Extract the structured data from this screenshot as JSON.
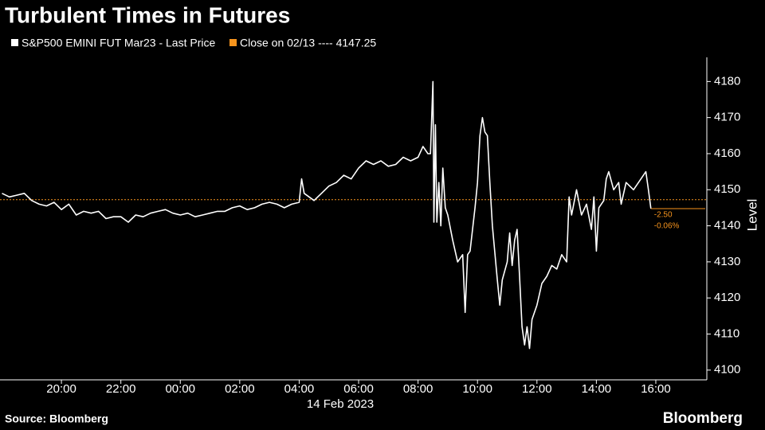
{
  "chart_data": {
    "type": "line",
    "title": "Turbulent Times in Futures",
    "x": [
      "2023-02-13T18:00",
      "2023-02-13T18:15",
      "2023-02-13T18:30",
      "2023-02-13T18:45",
      "2023-02-13T19:00",
      "2023-02-13T19:15",
      "2023-02-13T19:30",
      "2023-02-13T19:45",
      "2023-02-13T20:00",
      "2023-02-13T20:15",
      "2023-02-13T20:30",
      "2023-02-13T20:45",
      "2023-02-13T21:00",
      "2023-02-13T21:15",
      "2023-02-13T21:30",
      "2023-02-13T21:45",
      "2023-02-13T22:00",
      "2023-02-13T22:15",
      "2023-02-13T22:30",
      "2023-02-13T22:45",
      "2023-02-13T23:00",
      "2023-02-13T23:15",
      "2023-02-13T23:30",
      "2023-02-13T23:45",
      "2023-02-14T00:00",
      "2023-02-14T00:15",
      "2023-02-14T00:30",
      "2023-02-14T00:45",
      "2023-02-14T01:00",
      "2023-02-14T01:15",
      "2023-02-14T01:30",
      "2023-02-14T01:45",
      "2023-02-14T02:00",
      "2023-02-14T02:15",
      "2023-02-14T02:30",
      "2023-02-14T02:45",
      "2023-02-14T03:00",
      "2023-02-14T03:15",
      "2023-02-14T03:30",
      "2023-02-14T03:45",
      "2023-02-14T04:00",
      "2023-02-14T04:05",
      "2023-02-14T04:10",
      "2023-02-14T04:30",
      "2023-02-14T04:45",
      "2023-02-14T05:00",
      "2023-02-14T05:15",
      "2023-02-14T05:30",
      "2023-02-14T05:45",
      "2023-02-14T06:00",
      "2023-02-14T06:15",
      "2023-02-14T06:30",
      "2023-02-14T06:45",
      "2023-02-14T07:00",
      "2023-02-14T07:15",
      "2023-02-14T07:30",
      "2023-02-14T07:45",
      "2023-02-14T08:00",
      "2023-02-14T08:10",
      "2023-02-14T08:20",
      "2023-02-14T08:25",
      "2023-02-14T08:30",
      "2023-02-14T08:32",
      "2023-02-14T08:35",
      "2023-02-14T08:38",
      "2023-02-14T08:42",
      "2023-02-14T08:46",
      "2023-02-14T08:50",
      "2023-02-14T08:55",
      "2023-02-14T09:00",
      "2023-02-14T09:10",
      "2023-02-14T09:20",
      "2023-02-14T09:30",
      "2023-02-14T09:35",
      "2023-02-14T09:40",
      "2023-02-14T09:45",
      "2023-02-14T09:55",
      "2023-02-14T10:00",
      "2023-02-14T10:05",
      "2023-02-14T10:10",
      "2023-02-14T10:15",
      "2023-02-14T10:20",
      "2023-02-14T10:25",
      "2023-02-14T10:30",
      "2023-02-14T10:40",
      "2023-02-14T10:45",
      "2023-02-14T10:50",
      "2023-02-14T11:00",
      "2023-02-14T11:05",
      "2023-02-14T11:10",
      "2023-02-14T11:15",
      "2023-02-14T11:20",
      "2023-02-14T11:25",
      "2023-02-14T11:30",
      "2023-02-14T11:35",
      "2023-02-14T11:40",
      "2023-02-14T11:45",
      "2023-02-14T11:50",
      "2023-02-14T12:00",
      "2023-02-14T12:10",
      "2023-02-14T12:20",
      "2023-02-14T12:30",
      "2023-02-14T12:40",
      "2023-02-14T12:50",
      "2023-02-14T13:00",
      "2023-02-14T13:05",
      "2023-02-14T13:10",
      "2023-02-14T13:20",
      "2023-02-14T13:30",
      "2023-02-14T13:40",
      "2023-02-14T13:50",
      "2023-02-14T13:55",
      "2023-02-14T14:00",
      "2023-02-14T14:05",
      "2023-02-14T14:15",
      "2023-02-14T14:20",
      "2023-02-14T14:25",
      "2023-02-14T14:35",
      "2023-02-14T14:45",
      "2023-02-14T14:50",
      "2023-02-14T15:00",
      "2023-02-14T15:15",
      "2023-02-14T15:30",
      "2023-02-14T15:40",
      "2023-02-14T15:45",
      "2023-02-14T15:50"
    ],
    "series": [
      {
        "name": "S&P500 EMINI FUT Mar23 - Last Price",
        "color": "#ffffff",
        "values": [
          4149,
          4148,
          4148.5,
          4149,
          4147,
          4146,
          4145.5,
          4146.5,
          4144.5,
          4146,
          4143,
          4144,
          4143.5,
          4144,
          4142,
          4142.5,
          4142.5,
          4141,
          4143,
          4142.5,
          4143.5,
          4144,
          4144.5,
          4143.5,
          4143,
          4143.5,
          4142.5,
          4143,
          4143.5,
          4144,
          4144,
          4145,
          4145.5,
          4144.5,
          4145,
          4146,
          4146.5,
          4146,
          4145,
          4146,
          4146.5,
          4153,
          4149,
          4147,
          4149,
          4151,
          4152,
          4154,
          4153,
          4156,
          4158,
          4157,
          4158,
          4156.5,
          4157,
          4159,
          4158,
          4159,
          4162,
          4160,
          4160,
          4180,
          4141,
          4168,
          4141,
          4152,
          4140,
          4156,
          4145,
          4143,
          4136,
          4130,
          4132,
          4116,
          4132,
          4133,
          4145,
          4152,
          4165,
          4170,
          4166,
          4165,
          4152,
          4140,
          4125,
          4118,
          4125,
          4130,
          4138,
          4129,
          4136,
          4139,
          4126,
          4112,
          4107,
          4112,
          4106,
          4114,
          4118,
          4124,
          4126,
          4129,
          4128,
          4132,
          4130,
          4148,
          4143,
          4150,
          4143,
          4146,
          4139,
          4148,
          4133,
          4145,
          4147,
          4153,
          4155,
          4150,
          4152,
          4146,
          4152,
          4150,
          4153,
          4155,
          4150,
          4144.75
        ]
      }
    ],
    "reference_line": {
      "name": "Close on 02/13 ---- 4147.25",
      "value": 4147.25,
      "color": "#f7941d"
    },
    "annotations": [
      "-2.50",
      "-0.06%"
    ],
    "xlim": [
      "2023-02-13T17:56",
      "2023-02-14T17:43"
    ],
    "xticks": [
      {
        "value": "2023-02-13T20:00",
        "label": "20:00"
      },
      {
        "value": "2023-02-13T22:00",
        "label": "22:00"
      },
      {
        "value": "2023-02-14T00:00",
        "label": "00:00"
      },
      {
        "value": "2023-02-14T02:00",
        "label": "02:00"
      },
      {
        "value": "2023-02-14T04:00",
        "label": "04:00"
      },
      {
        "value": "2023-02-14T06:00",
        "label": "06:00"
      },
      {
        "value": "2023-02-14T08:00",
        "label": "08:00"
      },
      {
        "value": "2023-02-14T10:00",
        "label": "10:00"
      },
      {
        "value": "2023-02-14T12:00",
        "label": "12:00"
      },
      {
        "value": "2023-02-14T14:00",
        "label": "14:00"
      },
      {
        "value": "2023-02-14T16:00",
        "label": "16:00"
      }
    ],
    "x_date_label": "14 Feb 2023",
    "ylabel": "Level",
    "ylim": [
      4097.3,
      4186.7
    ],
    "yticks": [
      4100,
      4110,
      4120,
      4130,
      4140,
      4150,
      4160,
      4170,
      4180
    ],
    "source": "Source: Bloomberg",
    "brand": "Bloomberg"
  }
}
